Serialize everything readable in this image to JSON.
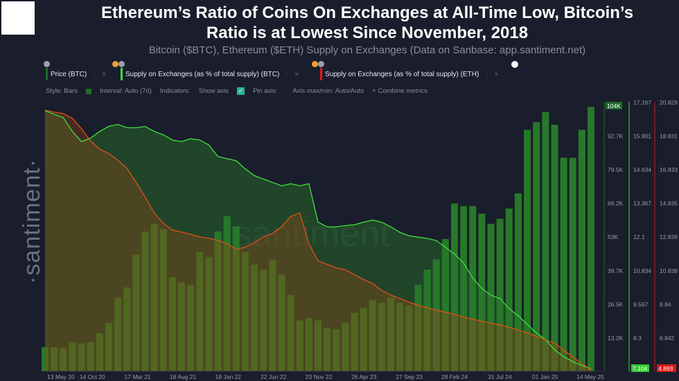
{
  "title": "Ethereum’s Ratio of Coins On Exchanges at All-Time Low, Bitcoin’s Ratio is at Lowest Since November, 2018",
  "subtitle": "Bitcoin ($BTC), Ethereum ($ETH) Supply on Exchanges (Data on Sanbase: app.santiment.net)",
  "brand": "·santiment·",
  "watermark": "santiment",
  "metrics": [
    {
      "label": "Price (BTC)",
      "color": "#1e6b2a"
    },
    {
      "label": "Supply on Exchanges (as % of total supply) (BTC)",
      "color": "#3fe03f"
    },
    {
      "label": "Supply on Exchanges (as % of total supply) (ETH)",
      "color": "#e01919"
    }
  ],
  "toolbar": {
    "style": "Style: Bars",
    "interval": "Interval: Auto (7d)",
    "indicators": "Indicators:",
    "show_axis": "Show axis",
    "pin_axis": "Pin axis",
    "axis_maxmin": "Axis max/min: Auto/Auto",
    "combine": "+ Combine metrics"
  },
  "chart_data": {
    "type": "bar+line",
    "x_ticks": [
      "13 May 20",
      "14 Oct 20",
      "17 Mar 21",
      "18 Aug 21",
      "19 Jan 22",
      "22 Jun 22",
      "23 Nov 22",
      "26 Apr 23",
      "27 Sep 23",
      "28 Feb 24",
      "31 Jul 24",
      "01 Jan 25",
      "14 May 25"
    ],
    "x_range": [
      "May 2020",
      "May 2025"
    ],
    "axes": {
      "price": {
        "ticks": [
          "13.2K",
          "26.5K",
          "39.7K",
          "53K",
          "66.2K",
          "79.5K",
          "92.7K"
        ],
        "last": "104K",
        "color": "#1e6b2a",
        "ylim": [
          0,
          106
        ]
      },
      "btc": {
        "ticks": [
          "8.3",
          "9.567",
          "10.834",
          "12.1",
          "13.367",
          "14.634",
          "15.901",
          "17.167"
        ],
        "last": "7.104",
        "color": "#3fe03f",
        "ylim": [
          7.0,
          17.3
        ]
      },
      "eth": {
        "ticks": [
          "6.842",
          "8.84",
          "10.838",
          "12.836",
          "14.835",
          "16.833",
          "18.831",
          "20.829"
        ],
        "last": "4.893",
        "color": "#e01919",
        "ylim": [
          4.8,
          21.0
        ]
      }
    },
    "series": [
      {
        "name": "Price (BTC)",
        "unit": "K USD",
        "type": "bar",
        "values": [
          9.5,
          9.5,
          9.2,
          11.5,
          11,
          11.5,
          15,
          19,
          29,
          33,
          46,
          55,
          58,
          56,
          37,
          35,
          34,
          47,
          45,
          55,
          61,
          57,
          47,
          42,
          40,
          44,
          38,
          30,
          20,
          21,
          20,
          17,
          16.5,
          19,
          23,
          25,
          28,
          27,
          29,
          27,
          26,
          34,
          40,
          44,
          52,
          66,
          65,
          65,
          62,
          58,
          60,
          64,
          70,
          95,
          98,
          102,
          97,
          84,
          84,
          95,
          104
        ]
      },
      {
        "name": "Supply on Exchanges (as % of total supply) (BTC)",
        "type": "line",
        "values": [
          16.96,
          16.83,
          16.7,
          16.17,
          15.78,
          15.91,
          16.17,
          16.36,
          16.44,
          16.31,
          16.31,
          16.36,
          16.17,
          16.04,
          15.84,
          15.78,
          15.89,
          15.84,
          15.65,
          15.21,
          15.13,
          15.05,
          14.74,
          14.48,
          14.35,
          14.22,
          14.09,
          14.17,
          14.09,
          14.17,
          12.7,
          12.52,
          12.52,
          12.57,
          12.6,
          12.7,
          12.78,
          12.7,
          12.52,
          12.31,
          12.18,
          12.13,
          12.08,
          12.0,
          11.74,
          11.48,
          11.14,
          10.56,
          10.17,
          9.91,
          9.78,
          9.39,
          9.13,
          8.79,
          8.47,
          8.21,
          7.82,
          7.56,
          7.37,
          7.22,
          7.1
        ]
      },
      {
        "name": "Supply on Exchanges (as % of total supply) (ETH)",
        "type": "line",
        "values": [
          20.5,
          20.38,
          20.29,
          20.01,
          19.39,
          18.65,
          18.15,
          17.9,
          17.49,
          17.0,
          16.17,
          15.27,
          14.32,
          13.7,
          13.29,
          13.17,
          13.04,
          12.88,
          12.8,
          12.67,
          12.47,
          12.14,
          12.26,
          12.55,
          12.88,
          13.08,
          13.5,
          14.11,
          14.32,
          12.47,
          11.44,
          11.23,
          11.02,
          10.9,
          10.61,
          10.32,
          10.08,
          9.66,
          9.38,
          9.17,
          8.96,
          8.76,
          8.63,
          8.47,
          8.35,
          8.22,
          8.06,
          7.93,
          7.81,
          7.69,
          7.6,
          7.44,
          7.28,
          7.11,
          6.9,
          6.7,
          6.49,
          6.08,
          5.67,
          5.26,
          4.89
        ]
      }
    ]
  }
}
